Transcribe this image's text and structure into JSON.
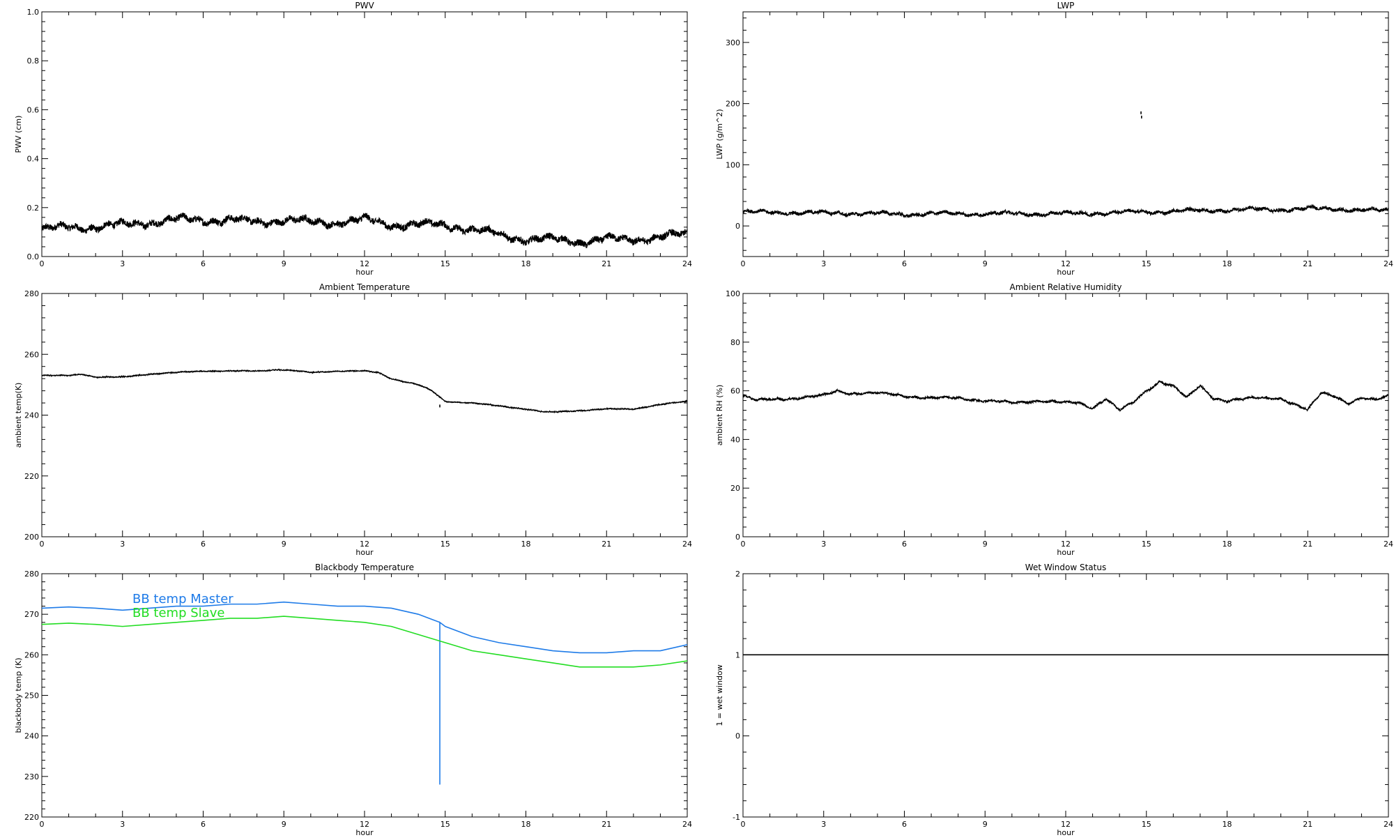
{
  "chart_data": [
    {
      "id": "pwv",
      "type": "line",
      "title": "PWV",
      "xlabel": "hour",
      "ylabel": "PWV (cm)",
      "xlim": [
        0,
        24
      ],
      "ylim": [
        0.0,
        1.0
      ],
      "xticks": [
        0,
        3,
        6,
        9,
        12,
        15,
        18,
        21,
        24
      ],
      "yticks": [
        0.0,
        0.2,
        0.4,
        0.6,
        0.8,
        1.0
      ],
      "ytick_labels": [
        "0.0",
        "0.2",
        "0.4",
        "0.6",
        "0.8",
        "1.0"
      ],
      "series": [
        {
          "color": "#000000",
          "noise": 0.012,
          "x": [
            0,
            1,
            2,
            3,
            4,
            5,
            6,
            7,
            8,
            9,
            10,
            11,
            12,
            13,
            14,
            15,
            16,
            17,
            18,
            19,
            20,
            21,
            22,
            23,
            24
          ],
          "y": [
            0.11,
            0.12,
            0.12,
            0.13,
            0.14,
            0.15,
            0.15,
            0.15,
            0.14,
            0.15,
            0.14,
            0.14,
            0.15,
            0.13,
            0.13,
            0.13,
            0.11,
            0.09,
            0.07,
            0.07,
            0.06,
            0.07,
            0.07,
            0.08,
            0.09
          ]
        }
      ]
    },
    {
      "id": "lwp",
      "type": "line",
      "title": "LWP",
      "xlabel": "hour",
      "ylabel": "LWP (g/m^2)",
      "xlim": [
        0,
        24
      ],
      "ylim": [
        -50,
        350
      ],
      "xticks": [
        0,
        3,
        6,
        9,
        12,
        15,
        18,
        21,
        24
      ],
      "yticks": [
        0,
        100,
        200,
        300
      ],
      "ytick_labels": [
        "0",
        "100",
        "200",
        "300"
      ],
      "series": [
        {
          "color": "#000000",
          "noise": 2.5,
          "x": [
            0,
            1,
            2,
            3,
            4,
            5,
            6,
            7,
            8,
            9,
            10,
            11,
            12,
            13,
            14,
            15,
            16,
            17,
            18,
            19,
            20,
            21,
            22,
            23,
            24
          ],
          "y": [
            23,
            22,
            22,
            21,
            21,
            20,
            19,
            20,
            20,
            20,
            20,
            20,
            20,
            21,
            22,
            23,
            24,
            25,
            26,
            27,
            27,
            28,
            28,
            26,
            25
          ],
          "outliers": [
            [
              14.8,
              185
            ],
            [
              14.82,
              178
            ]
          ]
        }
      ]
    },
    {
      "id": "ambient-temperature",
      "type": "line",
      "title": "Ambient Temperature",
      "xlabel": "hour",
      "ylabel": "ambient temp(K)",
      "xlim": [
        0,
        24
      ],
      "ylim": [
        200,
        280
      ],
      "xticks": [
        0,
        3,
        6,
        9,
        12,
        15,
        18,
        21,
        24
      ],
      "yticks": [
        200,
        220,
        240,
        260,
        280
      ],
      "ytick_labels": [
        "200",
        "220",
        "240",
        "260",
        "280"
      ],
      "series": [
        {
          "color": "#000000",
          "noise": 0.1,
          "x": [
            0,
            1,
            1.5,
            2,
            3,
            4,
            5,
            6,
            7,
            8,
            8.8,
            9.5,
            10,
            11,
            12,
            12.5,
            13,
            14,
            14.5,
            15,
            16,
            17,
            18,
            18.7,
            19,
            20,
            21,
            22,
            23,
            24
          ],
          "y": [
            253,
            253,
            253.5,
            252.5,
            252.5,
            253.5,
            254,
            254.5,
            254.5,
            254.5,
            255,
            254.5,
            254,
            254.5,
            254.5,
            254,
            252,
            250,
            248,
            244.5,
            244,
            243,
            242,
            241,
            241,
            241.5,
            242,
            242,
            243.5,
            244.5
          ],
          "outliers": [
            [
              14.8,
              243
            ]
          ]
        }
      ]
    },
    {
      "id": "ambient-relative-humidity",
      "type": "line",
      "title": "Ambient Relative Humidity",
      "xlabel": "hour",
      "ylabel": "ambient RH (%)",
      "xlim": [
        0,
        24
      ],
      "ylim": [
        0,
        100
      ],
      "xticks": [
        0,
        3,
        6,
        9,
        12,
        15,
        18,
        21,
        24
      ],
      "yticks": [
        0,
        20,
        40,
        60,
        80,
        100
      ],
      "ytick_labels": [
        "0",
        "20",
        "40",
        "60",
        "80",
        "100"
      ],
      "series": [
        {
          "color": "#000000",
          "noise": 0.4,
          "x": [
            0,
            0.5,
            1,
            2,
            3,
            3.5,
            4,
            5,
            5.5,
            6,
            7,
            8,
            9,
            10,
            11,
            12,
            12.5,
            13,
            13.5,
            14,
            14.5,
            15,
            15.5,
            16,
            16.5,
            17,
            17.5,
            18,
            19,
            20,
            21,
            21.5,
            22,
            22.5,
            23,
            23.5,
            24
          ],
          "y": [
            58,
            56,
            56.5,
            57,
            58,
            60,
            59,
            59,
            58.5,
            58,
            57,
            57,
            56,
            55,
            56,
            55,
            55,
            53,
            57,
            52,
            55,
            60,
            64,
            62,
            57,
            62,
            57,
            56,
            57,
            57,
            52,
            59,
            58,
            55,
            57,
            56,
            58
          ]
        }
      ]
    },
    {
      "id": "blackbody-temperature",
      "type": "line",
      "title": "Blackbody Temperature",
      "xlabel": "hour",
      "ylabel": "blackbody temp (K)",
      "xlim": [
        0,
        24
      ],
      "ylim": [
        220,
        280
      ],
      "xticks": [
        0,
        3,
        6,
        9,
        12,
        15,
        18,
        21,
        24
      ],
      "yticks": [
        220,
        230,
        240,
        250,
        260,
        270,
        280
      ],
      "ytick_labels": [
        "220",
        "230",
        "240",
        "250",
        "260",
        "270",
        "280"
      ],
      "legend": "top-left",
      "series": [
        {
          "name": "BB temp Master",
          "color": "#1e7be8",
          "noise": 0,
          "x": [
            0,
            1,
            2,
            3,
            4,
            5,
            6,
            7,
            8,
            9,
            10,
            11,
            12,
            13,
            14,
            14.8,
            14.8,
            14.8,
            15,
            16,
            17,
            18,
            19,
            20,
            21,
            22,
            23,
            24
          ],
          "y": [
            271.5,
            271.8,
            271.5,
            271,
            271.5,
            272,
            272,
            272.5,
            272.5,
            273,
            272.5,
            272,
            272,
            271.5,
            270,
            268,
            228,
            268,
            267,
            264.5,
            263,
            262,
            261,
            260.5,
            260.5,
            261,
            261,
            262.5
          ]
        },
        {
          "name": "BB temp Slave",
          "color": "#22dd22",
          "noise": 0,
          "x": [
            0,
            1,
            2,
            3,
            4,
            5,
            6,
            7,
            8,
            9,
            10,
            11,
            12,
            13,
            14,
            15,
            16,
            17,
            18,
            19,
            20,
            21,
            22,
            23,
            24
          ],
          "y": [
            267.5,
            267.8,
            267.5,
            267,
            267.5,
            268,
            268.5,
            269,
            269,
            269.5,
            269,
            268.5,
            268,
            267,
            265,
            263,
            261,
            260,
            259,
            258,
            257,
            257,
            257,
            257.5,
            258.5
          ]
        }
      ]
    },
    {
      "id": "wet-window-status",
      "type": "line",
      "title": "Wet Window Status",
      "xlabel": "hour",
      "ylabel": "1 = wet window",
      "xlim": [
        0,
        24
      ],
      "ylim": [
        -1,
        2
      ],
      "xticks": [
        0,
        3,
        6,
        9,
        12,
        15,
        18,
        21,
        24
      ],
      "yticks": [
        -1,
        0,
        1,
        2
      ],
      "ytick_labels": [
        "-1",
        "0",
        "1",
        "2"
      ],
      "series": [
        {
          "color": "#000000",
          "noise": 0,
          "x": [
            0,
            24
          ],
          "y": [
            1,
            1
          ]
        }
      ]
    }
  ]
}
